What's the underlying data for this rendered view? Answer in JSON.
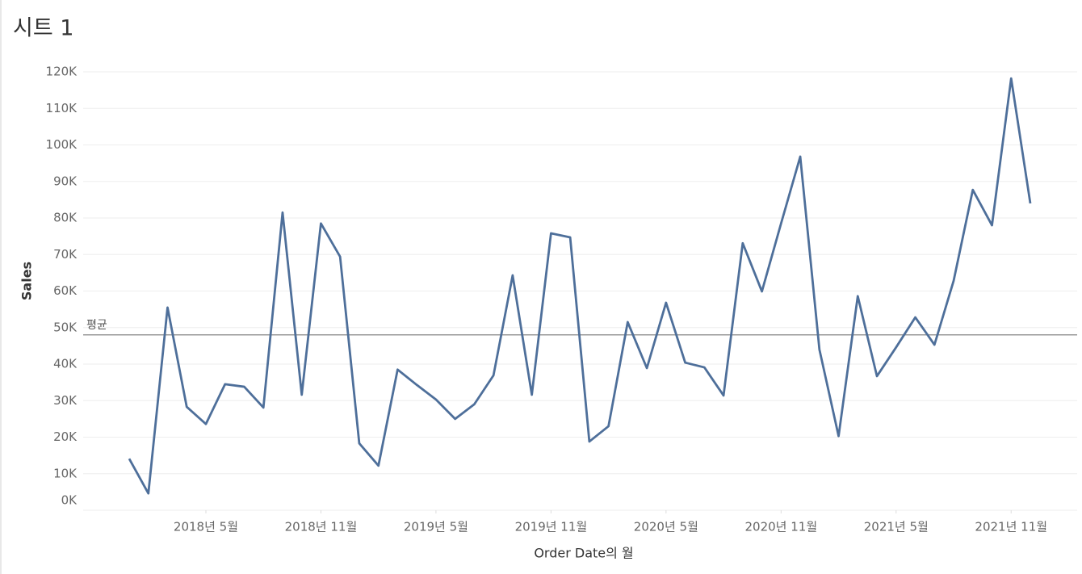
{
  "chart_data": {
    "type": "line",
    "title": "시트 1",
    "x_label": "Order Date의 월",
    "y_label": "Sales",
    "x": [
      "2018-01",
      "2018-02",
      "2018-03",
      "2018-04",
      "2018-05",
      "2018-06",
      "2018-07",
      "2018-08",
      "2018-09",
      "2018-10",
      "2018-11",
      "2018-12",
      "2019-01",
      "2019-02",
      "2019-03",
      "2019-04",
      "2019-05",
      "2019-06",
      "2019-07",
      "2019-08",
      "2019-09",
      "2019-10",
      "2019-11",
      "2019-12",
      "2020-01",
      "2020-02",
      "2020-03",
      "2020-04",
      "2020-05",
      "2020-06",
      "2020-07",
      "2020-08",
      "2020-09",
      "2020-10",
      "2020-11",
      "2020-12",
      "2021-01",
      "2021-02",
      "2021-03",
      "2021-04",
      "2021-05",
      "2021-06",
      "2021-07",
      "2021-08",
      "2021-09",
      "2021-10",
      "2021-11",
      "2021-12"
    ],
    "series": [
      {
        "name": "Sales",
        "color": "#4e6f9a",
        "values": [
          14100,
          4600,
          55500,
          28300,
          23600,
          34500,
          33800,
          28100,
          81500,
          31600,
          78500,
          69400,
          18300,
          12200,
          38500,
          34300,
          30300,
          25000,
          29000,
          36900,
          64300,
          31600,
          75800,
          74700,
          18800,
          23000,
          51500,
          38900,
          56800,
          40400,
          39100,
          31400,
          73100,
          59900,
          78500,
          96800,
          44000,
          20300,
          58600,
          36700,
          44600,
          52800,
          45300,
          62800,
          87700,
          78000,
          118200,
          84000
        ]
      }
    ],
    "reference_line": {
      "label": "평균",
      "value": 48000,
      "color": "#999999"
    },
    "xticks": [
      {
        "value": "2018-05",
        "label": "2018년 5월"
      },
      {
        "value": "2018-11",
        "label": "2018년 11월"
      },
      {
        "value": "2019-05",
        "label": "2019년 5월"
      },
      {
        "value": "2019-11",
        "label": "2019년 11월"
      },
      {
        "value": "2020-05",
        "label": "2020년 5월"
      },
      {
        "value": "2020-11",
        "label": "2020년 11월"
      },
      {
        "value": "2021-05",
        "label": "2021년 5월"
      },
      {
        "value": "2021-11",
        "label": "2021년 11월"
      }
    ],
    "ylim": [
      0,
      120000
    ],
    "yticks": [
      {
        "value": 0,
        "label": "0K"
      },
      {
        "value": 10000,
        "label": "10K"
      },
      {
        "value": 20000,
        "label": "20K"
      },
      {
        "value": 30000,
        "label": "30K"
      },
      {
        "value": 40000,
        "label": "40K"
      },
      {
        "value": 50000,
        "label": "50K"
      },
      {
        "value": 60000,
        "label": "60K"
      },
      {
        "value": 70000,
        "label": "70K"
      },
      {
        "value": 80000,
        "label": "80K"
      },
      {
        "value": 90000,
        "label": "90K"
      },
      {
        "value": 100000,
        "label": "100K"
      },
      {
        "value": 110000,
        "label": "110K"
      },
      {
        "value": 120000,
        "label": "120K"
      }
    ],
    "grid": true
  }
}
